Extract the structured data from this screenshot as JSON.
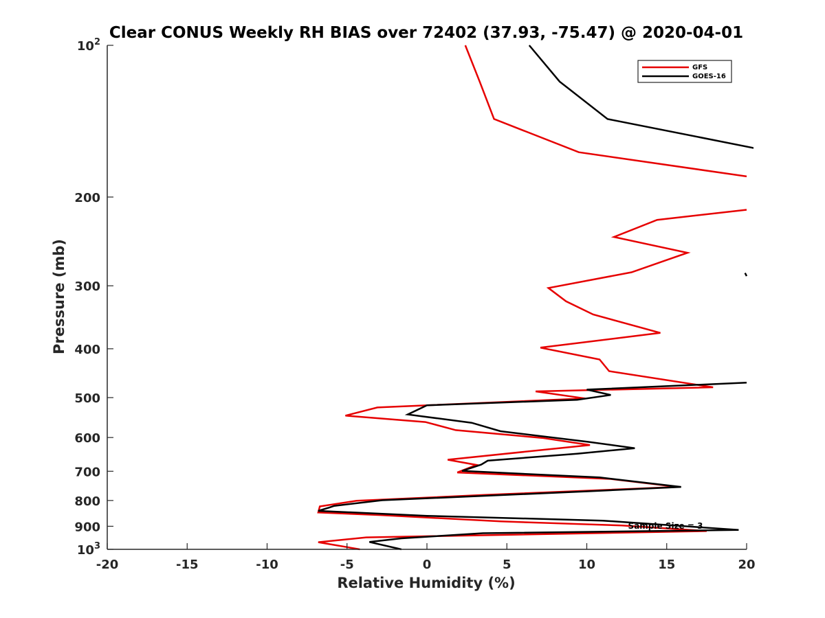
{
  "chart_data": {
    "type": "line",
    "title": "Clear CONUS Weekly RH BIAS over 72402 (37.93, -75.47) @ 2020-04-01",
    "xlabel": "Relative Humidity (%)",
    "ylabel": "Pressure (mb)",
    "xlim": [
      -20,
      20
    ],
    "ylim": [
      100,
      1000
    ],
    "yscale": "log",
    "y_reversed": true,
    "grid": false,
    "xticks": [
      -20,
      -15,
      -10,
      -5,
      0,
      5,
      10,
      15,
      20
    ],
    "xtick_labels": [
      "-20",
      "-15",
      "-10",
      "-5",
      "0",
      "5",
      "10",
      "15",
      "20"
    ],
    "yticks": [
      {
        "value": 100,
        "base": "10",
        "exp": "2"
      },
      {
        "value": 200,
        "base": "200",
        "exp": ""
      },
      {
        "value": 300,
        "base": "300",
        "exp": ""
      },
      {
        "value": 400,
        "base": "400",
        "exp": ""
      },
      {
        "value": 500,
        "base": "500",
        "exp": ""
      },
      {
        "value": 600,
        "base": "600",
        "exp": ""
      },
      {
        "value": 700,
        "base": "700",
        "exp": ""
      },
      {
        "value": 800,
        "base": "800",
        "exp": ""
      },
      {
        "value": 900,
        "base": "900",
        "exp": ""
      },
      {
        "value": 1000,
        "base": "10",
        "exp": "3"
      }
    ],
    "legend_position": "top-right",
    "annotation": "Sample Size = 3",
    "series": [
      {
        "name": "GFS",
        "color": "#e60000",
        "points": [
          [
            2.4,
            100
          ],
          [
            3.3,
            118
          ],
          [
            4.2,
            140
          ],
          [
            9.5,
            163
          ],
          [
            20.0,
            182
          ],
          [
            null,
            null
          ],
          [
            20.0,
            212
          ],
          [
            14.4,
            222
          ],
          [
            11.7,
            240
          ],
          [
            16.3,
            258
          ],
          [
            12.8,
            282
          ],
          [
            7.6,
            303
          ],
          [
            8.7,
            322
          ],
          [
            10.4,
            342
          ],
          [
            14.6,
            372
          ],
          [
            7.1,
            398
          ],
          [
            10.8,
            420
          ],
          [
            11.4,
            443
          ],
          [
            17.9,
            477
          ],
          [
            6.8,
            486
          ],
          [
            9.9,
            502
          ],
          [
            -3.1,
            523
          ],
          [
            -5.1,
            543
          ],
          [
            -0.1,
            559
          ],
          [
            1.8,
            580
          ],
          [
            7.2,
            601
          ],
          [
            10.2,
            621
          ],
          [
            1.3,
            664
          ],
          [
            3.1,
            680
          ],
          [
            1.9,
            704
          ],
          [
            11.5,
            725
          ],
          [
            15.7,
            752
          ],
          [
            3.6,
            780
          ],
          [
            -4.4,
            801
          ],
          [
            -6.7,
            822
          ],
          [
            -6.8,
            845
          ],
          [
            -2.9,
            855
          ],
          [
            4.6,
            880
          ],
          [
            12.2,
            897
          ],
          [
            17.5,
            920
          ],
          [
            -3.8,
            947
          ],
          [
            -6.8,
            968
          ],
          [
            -4.2,
            1000
          ]
        ]
      },
      {
        "name": "GOES-16",
        "color": "#000000",
        "points": [
          [
            6.4,
            100
          ],
          [
            8.3,
            118
          ],
          [
            11.3,
            140
          ],
          [
            20.5,
            160
          ],
          [
            null,
            null
          ],
          [
            19.9,
            283
          ],
          [
            20.0,
            287
          ],
          [
            null,
            null
          ],
          [
            20.0,
            467
          ],
          [
            10.0,
            482
          ],
          [
            11.5,
            494
          ],
          [
            9.4,
            505
          ],
          [
            0.0,
            518
          ],
          [
            -1.2,
            540
          ],
          [
            2.8,
            561
          ],
          [
            4.6,
            583
          ],
          [
            10.1,
            612
          ],
          [
            13.0,
            630
          ],
          [
            9.4,
            646
          ],
          [
            3.8,
            667
          ],
          [
            3.4,
            679
          ],
          [
            2.2,
            699
          ],
          [
            10.8,
            720
          ],
          [
            15.9,
            752
          ],
          [
            10.2,
            767
          ],
          [
            -2.8,
            799
          ],
          [
            -5.8,
            820
          ],
          [
            -6.1,
            826
          ],
          [
            -6.8,
            839
          ],
          [
            0.0,
            858
          ],
          [
            11.0,
            877
          ],
          [
            19.5,
            915
          ],
          [
            3.5,
            929
          ],
          [
            -1.6,
            951
          ],
          [
            -3.6,
            967
          ],
          [
            -1.6,
            1000
          ]
        ]
      }
    ]
  }
}
